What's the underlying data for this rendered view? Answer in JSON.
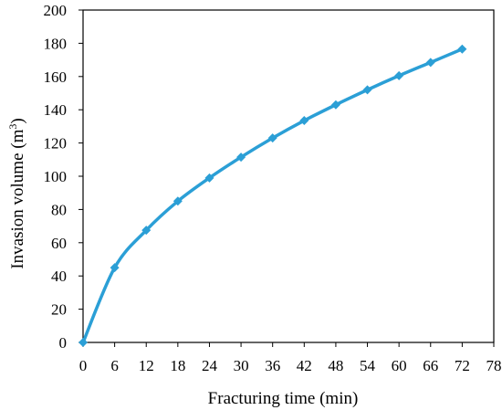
{
  "chart_data": {
    "type": "line",
    "xlabel": "Fracturing time (min)",
    "ylabel_main": "Invasion volume  (m",
    "ylabel_sup": "3",
    "ylabel_close": ")",
    "x_ticks": [
      0,
      6,
      12,
      18,
      24,
      30,
      36,
      42,
      48,
      54,
      60,
      66,
      72,
      78
    ],
    "y_ticks": [
      0,
      20,
      40,
      60,
      80,
      100,
      120,
      140,
      160,
      180,
      200
    ],
    "xlim": [
      0,
      78
    ],
    "ylim": [
      0,
      200
    ],
    "grid": false,
    "series": [
      {
        "color": "#2b9fd6",
        "marker": "diamond",
        "smooth": true,
        "x": [
          0,
          6,
          12,
          18,
          24,
          30,
          36,
          42,
          48,
          54,
          60,
          66,
          72
        ],
        "y": [
          0,
          45,
          67.5,
          85,
          99,
          111.5,
          123,
          133.5,
          143,
          152,
          160.5,
          168.5,
          176.5
        ]
      }
    ]
  }
}
